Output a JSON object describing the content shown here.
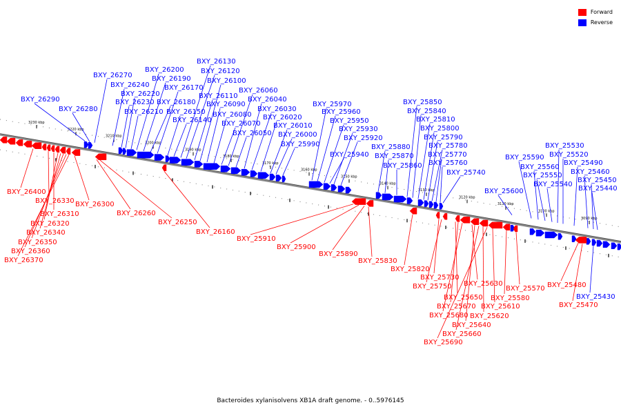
{
  "caption": "Bacteroides xylanisolvens XB1A draft genome. - 0..5976145",
  "legend": [
    {
      "label": "Forward",
      "color": "#ff0000"
    },
    {
      "label": "Reverse",
      "color": "#0000ff"
    }
  ],
  "colors": {
    "forward": "#ff0000",
    "reverse": "#0000ff",
    "backbone": "#888888"
  },
  "axis": {
    "unit": "kbp",
    "ticks": [
      3230,
      3220,
      3210,
      3200,
      3190,
      3180,
      3170,
      3160,
      3150,
      3140,
      3130,
      3120,
      3110,
      3100,
      3090
    ]
  },
  "genes": {
    "reverse": [
      "BXY_26290",
      "BXY_26280",
      "BXY_26270",
      "BXY_26240",
      "BXY_26230",
      "BXY_26220",
      "BXY_26210",
      "BXY_26200",
      "BXY_26190",
      "BXY_26180",
      "BXY_26170",
      "BXY_26150",
      "BXY_26140",
      "BXY_26130",
      "BXY_26120",
      "BXY_26110",
      "BXY_26100",
      "BXY_26090",
      "BXY_26080",
      "BXY_26070",
      "BXY_26060",
      "BXY_26050",
      "BXY_26040",
      "BXY_26030",
      "BXY_26020",
      "BXY_26010",
      "BXY_26000",
      "BXY_25990",
      "BXY_25970",
      "BXY_25960",
      "BXY_25950",
      "BXY_25940",
      "BXY_25930",
      "BXY_25920",
      "BXY_25880",
      "BXY_25870",
      "BXY_25860",
      "BXY_25850",
      "BXY_25840",
      "BXY_25810",
      "BXY_25800",
      "BXY_25790",
      "BXY_25780",
      "BXY_25770",
      "BXY_25760",
      "BXY_25740",
      "BXY_25600",
      "BXY_25590",
      "BXY_25560",
      "BXY_25550",
      "BXY_25540",
      "BXY_25530",
      "BXY_25520",
      "BXY_25490",
      "BXY_25460",
      "BXY_25450",
      "BXY_25440",
      "BXY_25430"
    ],
    "forward": [
      "BXY_26400",
      "BXY_26330",
      "BXY_26310",
      "BXY_26300",
      "BXY_26320",
      "BXY_26340",
      "BXY_26350",
      "BXY_26360",
      "BXY_26370",
      "BXY_26260",
      "BXY_26250",
      "BXY_26160",
      "BXY_25910",
      "BXY_25900",
      "BXY_25890",
      "BXY_25830",
      "BXY_25820",
      "BXY_25730",
      "BXY_25750",
      "BXY_25630",
      "BXY_25650",
      "BXY_25570",
      "BXY_25670",
      "BXY_25580",
      "BXY_25680",
      "BXY_25610",
      "BXY_25640",
      "BXY_25620",
      "BXY_25660",
      "BXY_25690",
      "BXY_25480",
      "BXY_25470"
    ]
  }
}
